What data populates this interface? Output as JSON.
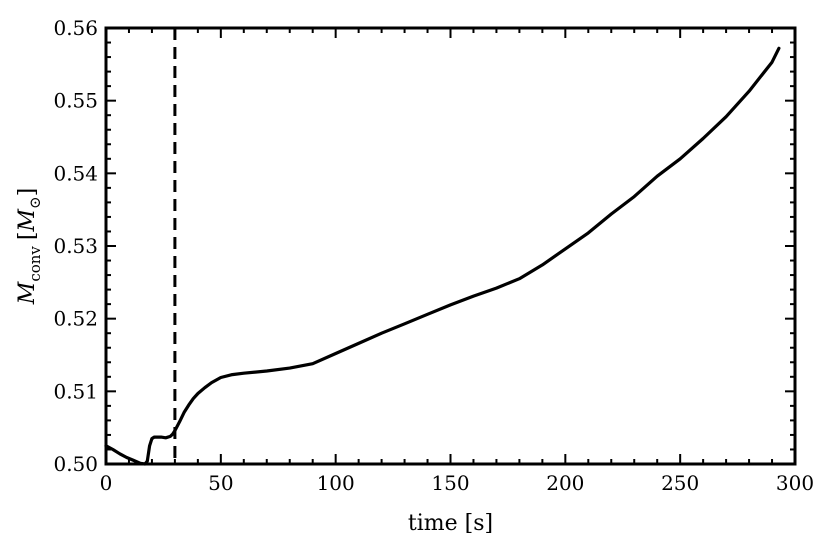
{
  "chart_data": {
    "type": "line",
    "title": "",
    "xlabel": "time [s]",
    "ylabel": {
      "symbol": "M",
      "subscript": "conv",
      "unit_open": "[",
      "unit_symbol": "M",
      "unit_subscript": "⊙",
      "unit_close": "]"
    },
    "xlim": [
      0,
      300
    ],
    "ylim": [
      0.5,
      0.56
    ],
    "xticks": [
      0,
      50,
      100,
      150,
      200,
      250,
      300
    ],
    "xtick_labels": [
      "0",
      "50",
      "100",
      "150",
      "200",
      "250",
      "300"
    ],
    "yticks": [
      0.5,
      0.51,
      0.52,
      0.53,
      0.54,
      0.55,
      0.56
    ],
    "ytick_labels": [
      "0.50",
      "0.51",
      "0.52",
      "0.53",
      "0.54",
      "0.55",
      "0.56"
    ],
    "grid": false,
    "vertical_line": {
      "x": 30,
      "style": "dashed",
      "color": "#000000"
    },
    "series": [
      {
        "color": "#000000",
        "x": [
          0,
          3,
          6,
          9,
          12,
          15,
          17,
          18,
          19,
          20,
          21,
          22,
          24,
          26,
          28,
          29,
          30,
          32,
          34,
          36,
          38,
          40,
          43,
          46,
          50,
          55,
          60,
          70,
          80,
          90,
          100,
          110,
          120,
          130,
          140,
          150,
          160,
          170,
          180,
          190,
          200,
          210,
          220,
          230,
          240,
          250,
          260,
          270,
          280,
          290,
          293
        ],
        "y": [
          0.5025,
          0.502,
          0.5014,
          0.5009,
          0.5005,
          0.5001,
          0.5,
          0.5004,
          0.5025,
          0.5035,
          0.5037,
          0.5037,
          0.5037,
          0.5036,
          0.5038,
          0.5041,
          0.5046,
          0.5058,
          0.5071,
          0.5081,
          0.509,
          0.5097,
          0.5105,
          0.5112,
          0.5119,
          0.5123,
          0.5125,
          0.5128,
          0.5132,
          0.5138,
          0.5152,
          0.5166,
          0.518,
          0.5193,
          0.5206,
          0.5219,
          0.5231,
          0.5242,
          0.5255,
          0.5274,
          0.5296,
          0.5318,
          0.5344,
          0.5368,
          0.5396,
          0.542,
          0.5448,
          0.5478,
          0.5513,
          0.5553,
          0.5572
        ]
      }
    ]
  }
}
